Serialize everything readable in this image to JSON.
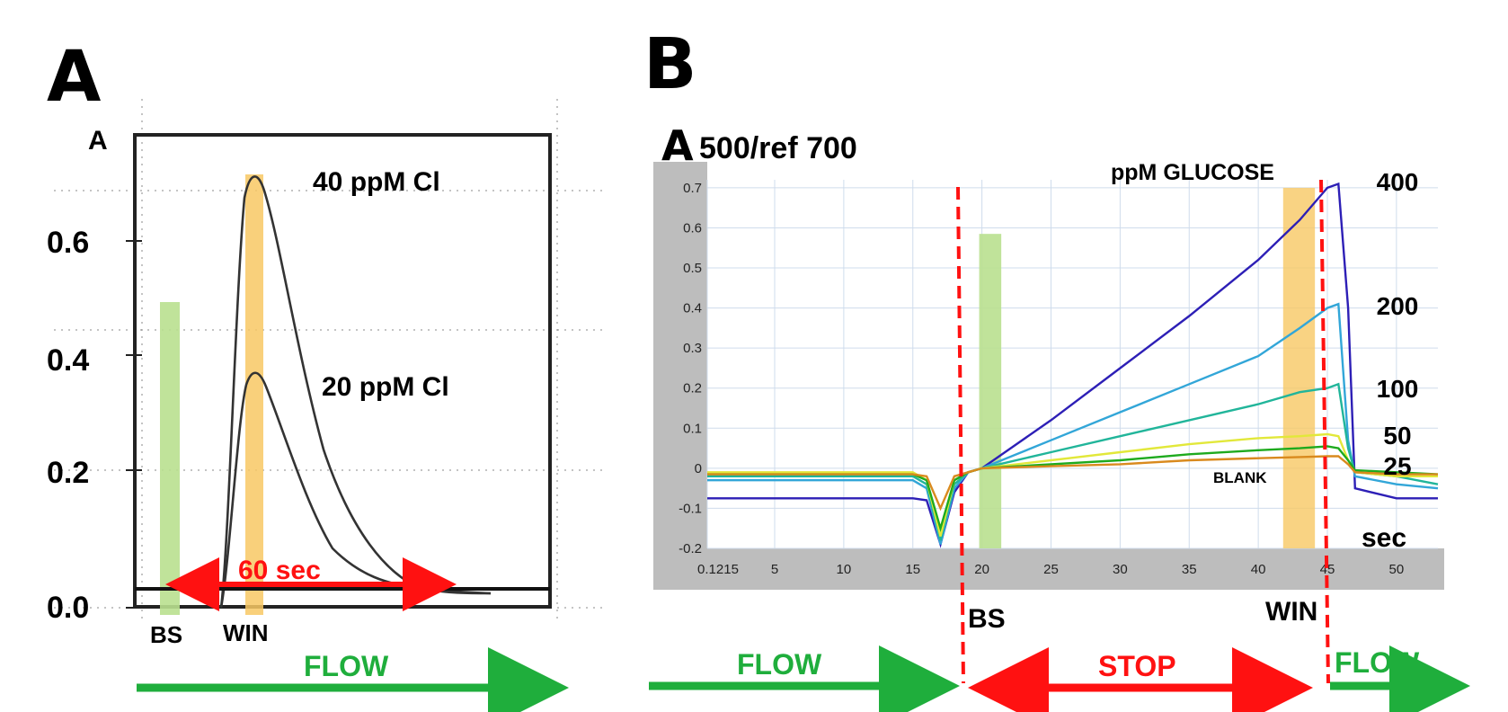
{
  "colors": {
    "flow": "#1fae3c",
    "stop": "#ff1111",
    "bs_band": "#b9e08f",
    "win_band": "#f8c864",
    "plot_gray": "#bdbdbd",
    "grid": "#cfdcec"
  },
  "panel_a": {
    "label": "A",
    "ylabel": "A",
    "yticks": [
      "0.0",
      "0.2",
      "0.4",
      "0.6"
    ],
    "peak_high_label": "40 ppM Cl",
    "peak_low_label": "20 ppM Cl",
    "time_label": "60 sec",
    "bs_label": "BS",
    "win_label": "WIN",
    "flow_label": "FLOW"
  },
  "panel_b": {
    "label": "B",
    "ylabel_big": "A",
    "ylabel_rest": "500/ref 700",
    "legend_title": "ppM GLUCOSE",
    "blank_label": "BLANK",
    "unit_label": "sec",
    "bs_label": "BS",
    "win_label": "WIN",
    "flow_left_label": "FLOW",
    "stop_label": "STOP",
    "flow_right_label": "FLOW"
  },
  "chart_data": [
    {
      "type": "line",
      "title": "A",
      "ylabel": "A",
      "ylim": [
        0.0,
        0.75
      ],
      "y_ticks": [
        0.0,
        0.2,
        0.4,
        0.6
      ],
      "series": [
        {
          "name": "40 ppM Cl",
          "x": [
            0,
            8,
            12,
            14,
            16,
            22,
            30,
            40,
            50,
            60
          ],
          "values": [
            0.0,
            0.0,
            0.05,
            0.4,
            0.72,
            0.5,
            0.27,
            0.1,
            0.02,
            0.0
          ]
        },
        {
          "name": "20 ppM Cl",
          "x": [
            0,
            8,
            12,
            14,
            16,
            22,
            30,
            40,
            50,
            60
          ],
          "values": [
            0.0,
            0.0,
            0.03,
            0.22,
            0.36,
            0.26,
            0.14,
            0.05,
            0.01,
            0.0
          ]
        }
      ],
      "annotations": [
        "60 sec",
        "BS",
        "WIN",
        "FLOW"
      ]
    },
    {
      "type": "line",
      "title": "A500/ref 700",
      "ylabel": "A500/ref 700",
      "xlim": [
        0.1215,
        53
      ],
      "ylim": [
        -0.2,
        0.75
      ],
      "x_ticks": [
        "0.1215",
        "5",
        "10",
        "15",
        "20",
        "25",
        "30",
        "35",
        "40",
        "45",
        "50"
      ],
      "y_ticks": [
        -0.2,
        -0.1,
        0,
        0.1,
        0.2,
        0.3,
        0.4,
        0.5,
        0.6,
        0.7
      ],
      "grid": true,
      "x": [
        0.1215,
        15,
        16,
        17,
        18,
        19,
        20,
        25,
        30,
        35,
        40,
        43,
        45,
        45.8,
        46.5,
        47,
        50,
        53
      ],
      "series": [
        {
          "name": "400",
          "values": [
            -0.075,
            -0.075,
            -0.08,
            -0.19,
            -0.06,
            -0.01,
            0.0,
            0.12,
            0.25,
            0.38,
            0.52,
            0.62,
            0.7,
            0.71,
            0.4,
            -0.05,
            -0.075,
            -0.075
          ]
        },
        {
          "name": "200",
          "values": [
            -0.03,
            -0.03,
            -0.05,
            -0.19,
            -0.05,
            -0.01,
            0.0,
            0.07,
            0.14,
            0.21,
            0.28,
            0.35,
            0.4,
            0.41,
            0.07,
            -0.02,
            -0.04,
            -0.05
          ]
        },
        {
          "name": "100",
          "values": [
            -0.02,
            -0.02,
            -0.04,
            -0.18,
            -0.04,
            -0.01,
            0.0,
            0.04,
            0.08,
            0.12,
            0.16,
            0.19,
            0.2,
            0.21,
            0.05,
            -0.01,
            -0.02,
            -0.04
          ]
        },
        {
          "name": "50",
          "values": [
            -0.01,
            -0.01,
            -0.03,
            -0.17,
            -0.03,
            -0.01,
            0.0,
            0.02,
            0.04,
            0.06,
            0.075,
            0.08,
            0.085,
            0.08,
            0.02,
            -0.01,
            -0.02,
            -0.02
          ]
        },
        {
          "name": "25",
          "values": [
            -0.015,
            -0.015,
            -0.03,
            -0.15,
            -0.03,
            -0.01,
            0.0,
            0.01,
            0.02,
            0.035,
            0.045,
            0.05,
            0.055,
            0.05,
            0.02,
            -0.005,
            -0.01,
            -0.015
          ]
        },
        {
          "name": "BLANK",
          "values": [
            -0.015,
            -0.015,
            -0.02,
            -0.1,
            -0.02,
            -0.01,
            0.0,
            0.005,
            0.01,
            0.02,
            0.025,
            0.028,
            0.03,
            0.03,
            0.01,
            -0.01,
            -0.015,
            -0.015
          ]
        }
      ],
      "annotations": [
        "ppM GLUCOSE",
        "sec",
        "BS",
        "WIN",
        "FLOW",
        "STOP",
        "FLOW"
      ]
    }
  ]
}
